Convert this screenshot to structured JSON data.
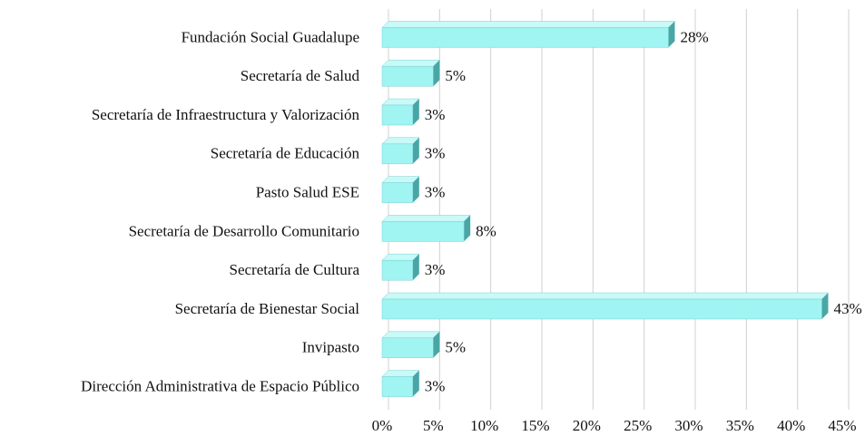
{
  "chart_data": {
    "type": "bar",
    "orientation": "horizontal",
    "categories": [
      "Fundación Social Guadalupe",
      "Secretaría de Salud",
      "Secretaría de Infraestructura y Valorización",
      "Secretaría de Educación",
      "Pasto Salud ESE",
      "Secretaría de Desarrollo Comunitario",
      "Secretaría de Cultura",
      "Secretaría de Bienestar Social",
      "Invipasto",
      "Dirección Administrativa de Espacio Público"
    ],
    "values": [
      28,
      5,
      3,
      3,
      3,
      8,
      3,
      43,
      5,
      3
    ],
    "value_labels": [
      "28%",
      "5%",
      "3%",
      "3%",
      "3%",
      "8%",
      "3%",
      "43%",
      "5%",
      "3%"
    ],
    "color": "#a0f4f2",
    "xlim": [
      0,
      45
    ],
    "xticks": [
      {
        "value": 0,
        "label": "0%"
      },
      {
        "value": 5,
        "label": "5%"
      },
      {
        "value": 10,
        "label": "10%"
      },
      {
        "value": 15,
        "label": "15%"
      },
      {
        "value": 20,
        "label": "20%"
      },
      {
        "value": 25,
        "label": "25%"
      },
      {
        "value": 30,
        "label": "30%"
      },
      {
        "value": 35,
        "label": "35%"
      },
      {
        "value": 40,
        "label": "40%"
      },
      {
        "value": 45,
        "label": "45%"
      }
    ],
    "grid": true
  }
}
